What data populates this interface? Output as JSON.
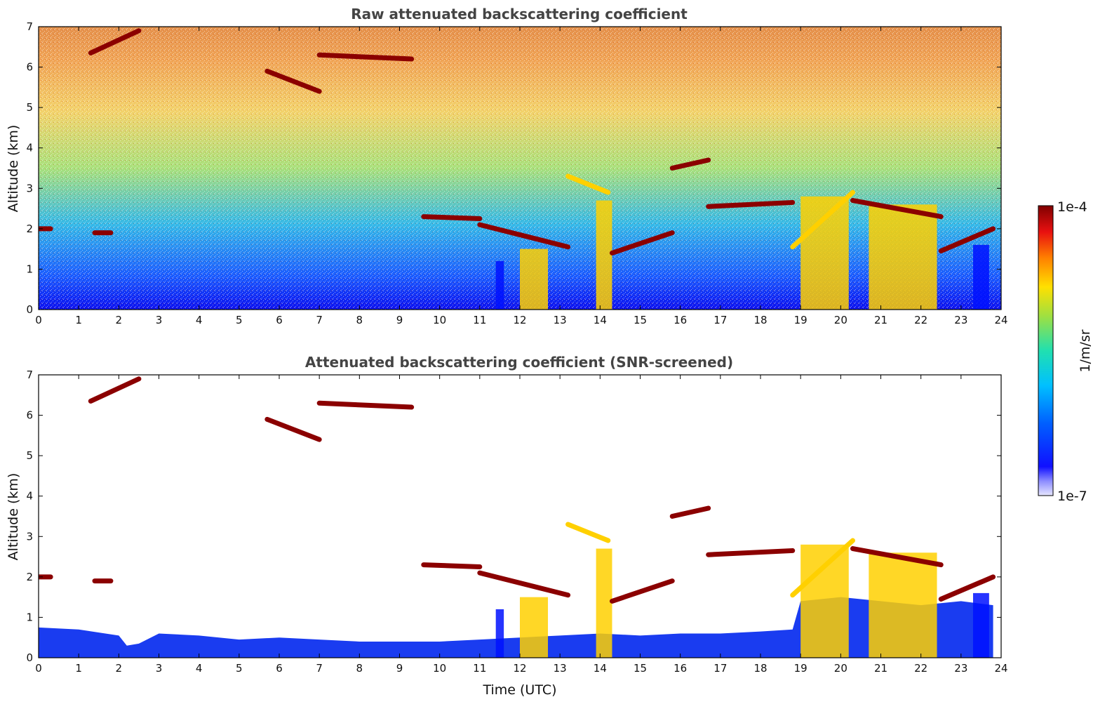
{
  "chart_data": [
    {
      "type": "heatmap",
      "title": "Raw attenuated backscattering coefficient",
      "xlabel": "",
      "ylabel": "Altitude (km)",
      "xlim": [
        0,
        24
      ],
      "ylim": [
        0,
        7
      ],
      "xticks": [
        "0",
        "1",
        "2",
        "3",
        "4",
        "5",
        "6",
        "7",
        "8",
        "9",
        "10",
        "11",
        "12",
        "13",
        "14",
        "15",
        "16",
        "17",
        "18",
        "19",
        "20",
        "21",
        "22",
        "23",
        "24"
      ],
      "yticks": [
        "0",
        "1",
        "2",
        "3",
        "4",
        "5",
        "6",
        "7"
      ],
      "cloud_layers": [
        {
          "t_start": 1.3,
          "t_end": 2.5,
          "alt_start": 6.35,
          "alt_end": 6.9,
          "level": "high"
        },
        {
          "t_start": 5.7,
          "t_end": 7.0,
          "alt_start": 5.9,
          "alt_end": 5.4,
          "level": "high"
        },
        {
          "t_start": 7.0,
          "t_end": 9.3,
          "alt_start": 6.3,
          "alt_end": 6.2,
          "level": "high"
        },
        {
          "t_start": 9.6,
          "t_end": 11.0,
          "alt_start": 2.3,
          "alt_end": 2.25,
          "level": "high"
        },
        {
          "t_start": 11.0,
          "t_end": 13.2,
          "alt_start": 2.1,
          "alt_end": 1.55,
          "level": "high"
        },
        {
          "t_start": 13.2,
          "t_end": 14.2,
          "alt_start": 3.3,
          "alt_end": 2.9,
          "level": "mid"
        },
        {
          "t_start": 14.3,
          "t_end": 15.8,
          "alt_start": 1.4,
          "alt_end": 1.9,
          "level": "high"
        },
        {
          "t_start": 15.8,
          "t_end": 16.7,
          "alt_start": 3.5,
          "alt_end": 3.7,
          "level": "high"
        },
        {
          "t_start": 16.7,
          "t_end": 18.8,
          "alt_start": 2.55,
          "alt_end": 2.65,
          "level": "high"
        },
        {
          "t_start": 18.8,
          "t_end": 20.3,
          "alt_start": 1.55,
          "alt_end": 2.9,
          "level": "mid"
        },
        {
          "t_start": 20.3,
          "t_end": 22.5,
          "alt_start": 2.7,
          "alt_end": 2.3,
          "level": "high"
        },
        {
          "t_start": 22.5,
          "t_end": 23.8,
          "alt_start": 1.45,
          "alt_end": 2.0,
          "level": "high"
        },
        {
          "t_start": 0.0,
          "t_end": 0.3,
          "alt_start": 2.0,
          "alt_end": 2.0,
          "level": "high"
        },
        {
          "t_start": 1.4,
          "t_end": 1.8,
          "alt_start": 1.9,
          "alt_end": 1.9,
          "level": "high"
        }
      ],
      "precipitation_columns": [
        {
          "t_start": 11.4,
          "t_end": 11.6,
          "top": 1.2,
          "level": "low"
        },
        {
          "t_start": 12.0,
          "t_end": 12.7,
          "top": 1.5,
          "level": "mid"
        },
        {
          "t_start": 13.9,
          "t_end": 14.3,
          "top": 2.7,
          "level": "mid"
        },
        {
          "t_start": 19.0,
          "t_end": 20.2,
          "top": 2.8,
          "level": "mid"
        },
        {
          "t_start": 20.7,
          "t_end": 22.4,
          "top": 2.6,
          "level": "mid"
        },
        {
          "t_start": 23.3,
          "t_end": 23.7,
          "top": 1.6,
          "level": "low"
        }
      ]
    },
    {
      "type": "heatmap",
      "title": "Attenuated backscattering coefficient (SNR-screened)",
      "xlabel": "Time (UTC)",
      "ylabel": "Altitude (km)",
      "xlim": [
        0,
        24
      ],
      "ylim": [
        0,
        7
      ],
      "xticks": [
        "0",
        "1",
        "2",
        "3",
        "4",
        "5",
        "6",
        "7",
        "8",
        "9",
        "10",
        "11",
        "12",
        "13",
        "14",
        "15",
        "16",
        "17",
        "18",
        "19",
        "20",
        "21",
        "22",
        "23",
        "24"
      ],
      "yticks": [
        "0",
        "1",
        "2",
        "3",
        "4",
        "5",
        "6",
        "7"
      ],
      "boundary_layer_top": [
        [
          0,
          0.75
        ],
        [
          1,
          0.7
        ],
        [
          2,
          0.55
        ],
        [
          2.2,
          0.3
        ],
        [
          2.5,
          0.35
        ],
        [
          3,
          0.6
        ],
        [
          4,
          0.55
        ],
        [
          5,
          0.45
        ],
        [
          6,
          0.5
        ],
        [
          7,
          0.45
        ],
        [
          8,
          0.4
        ],
        [
          9,
          0.4
        ],
        [
          10,
          0.4
        ],
        [
          11,
          0.45
        ],
        [
          12,
          0.5
        ],
        [
          13,
          0.55
        ],
        [
          14,
          0.6
        ],
        [
          15,
          0.55
        ],
        [
          16,
          0.6
        ],
        [
          17,
          0.6
        ],
        [
          18,
          0.65
        ],
        [
          18.8,
          0.7
        ],
        [
          19,
          1.4
        ],
        [
          20,
          1.5
        ],
        [
          21,
          1.4
        ],
        [
          22,
          1.3
        ],
        [
          23,
          1.4
        ],
        [
          23.8,
          1.3
        ]
      ]
    }
  ],
  "colorbar": {
    "label": "1/m/sr",
    "max_label": "1e-4",
    "min_label": "1e-7"
  },
  "colors": {
    "low": "#0010ff",
    "mid": "#ffd000",
    "high": "#8b0000",
    "boundary": "#1a3cf0"
  }
}
